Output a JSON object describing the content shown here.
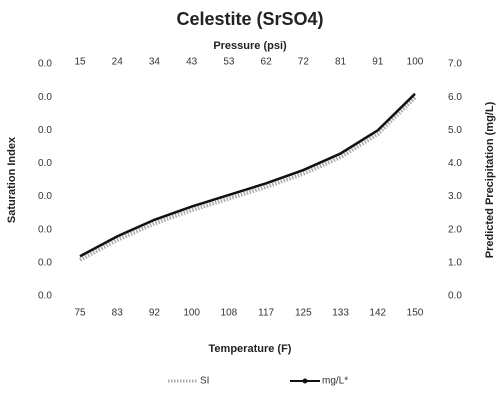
{
  "chart_data": {
    "type": "line",
    "title": "Celestite (SrSO4)",
    "x_label": "Temperature (F)",
    "x2_label": "Pressure (psi)",
    "y_label": "Saturation Index",
    "y2_label": "Predicted Precipitation (mg/L)",
    "categories": [
      "75",
      "83",
      "92",
      "100",
      "108",
      "117",
      "125",
      "133",
      "142",
      "150"
    ],
    "top_categories": [
      "15",
      "24",
      "34",
      "43",
      "53",
      "62",
      "72",
      "81",
      "91",
      "100"
    ],
    "series": [
      {
        "name": "SI",
        "color": "#aaaaaa",
        "style": "dotted",
        "values": [
          0.0046,
          0.007,
          0.009,
          0.0106,
          0.012,
          0.0134,
          0.015,
          0.017,
          0.0198,
          0.0242
        ]
      },
      {
        "name": "mg/L*",
        "color": "#111111",
        "style": "solid-marker",
        "axis": "y2",
        "values": [
          1.2,
          1.8,
          2.3,
          2.7,
          3.05,
          3.4,
          3.8,
          4.3,
          5.0,
          6.1
        ]
      }
    ],
    "ylim": [
      0,
      0.028
    ],
    "yticks": [
      {
        "value": 0,
        "label": "0.0"
      },
      {
        "value": 0.004,
        "label": "0.0"
      },
      {
        "value": 0.008,
        "label": "0.0"
      },
      {
        "value": 0.012,
        "label": "0.0"
      },
      {
        "value": 0.016,
        "label": "0.0"
      },
      {
        "value": 0.02,
        "label": "0.0"
      },
      {
        "value": 0.024,
        "label": "0.0"
      },
      {
        "value": 0.028,
        "label": "0.0"
      }
    ],
    "y2lim": [
      0,
      7
    ],
    "y2ticks": [
      {
        "value": 0,
        "label": "0.0"
      },
      {
        "value": 1,
        "label": "1.0"
      },
      {
        "value": 2,
        "label": "2.0"
      },
      {
        "value": 3,
        "label": "3.0"
      },
      {
        "value": 4,
        "label": "4.0"
      },
      {
        "value": 5,
        "label": "5.0"
      },
      {
        "value": 6,
        "label": "6.0"
      },
      {
        "value": 7,
        "label": "7.0"
      }
    ],
    "grid": false,
    "legend": "bottom"
  }
}
